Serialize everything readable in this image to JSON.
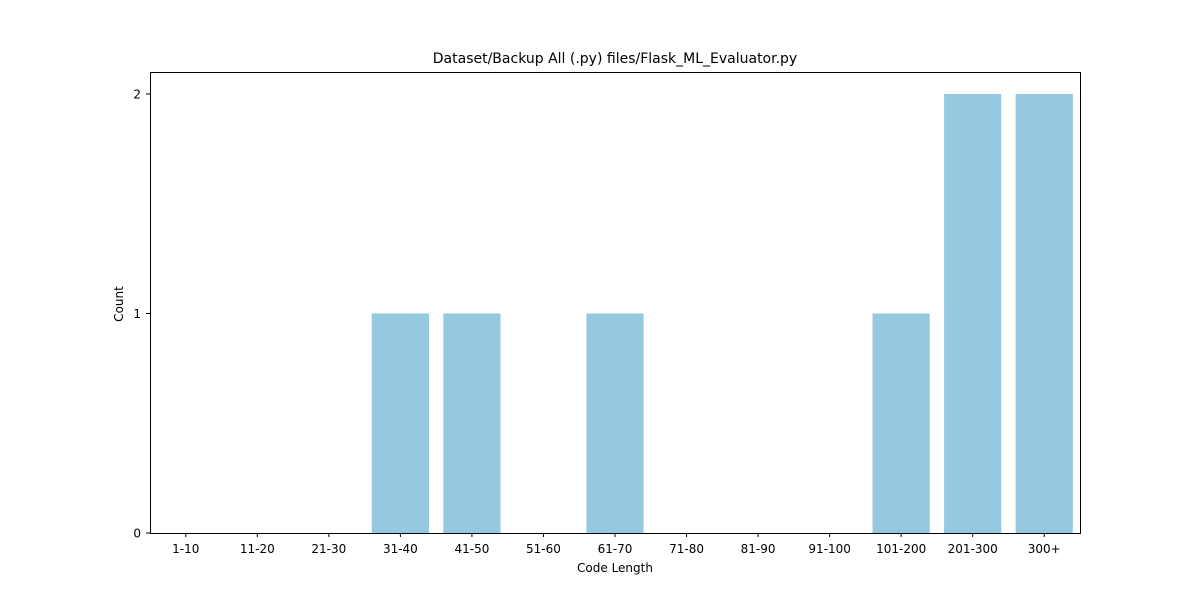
{
  "chart_data": {
    "type": "bar",
    "title": "Dataset/Backup All (.py) files/Flask_ML_Evaluator.py",
    "xlabel": "Code Length",
    "ylabel": "Count",
    "categories": [
      "1-10",
      "11-20",
      "21-30",
      "31-40",
      "41-50",
      "51-60",
      "61-70",
      "71-80",
      "81-90",
      "91-100",
      "101-200",
      "201-300",
      "300+"
    ],
    "values": [
      0,
      0,
      0,
      1,
      1,
      0,
      1,
      0,
      0,
      0,
      1,
      2,
      2
    ],
    "ylim": [
      0,
      2.1
    ],
    "yticks": [
      0,
      1,
      2
    ],
    "bar_color": "#95c9df",
    "grid": false,
    "legend": "none"
  }
}
